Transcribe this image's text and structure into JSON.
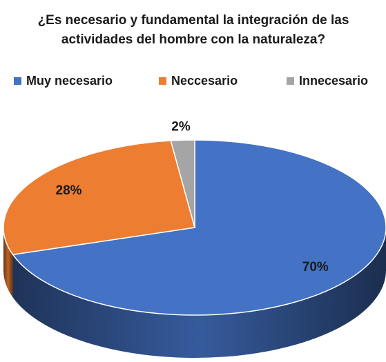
{
  "chart_data": {
    "type": "pie",
    "title": "¿Es necesario y fundamental la integración de las actividades del hombre con la naturaleza?",
    "categories": [
      "Muy necesario",
      "Neccesario",
      "Innecesario"
    ],
    "values": [
      70,
      28,
      2
    ],
    "value_labels": [
      "70%",
      "28%",
      "2%"
    ],
    "colors": [
      "#4472c4",
      "#ed7d31",
      "#a5a5a5"
    ],
    "legend": "top"
  }
}
